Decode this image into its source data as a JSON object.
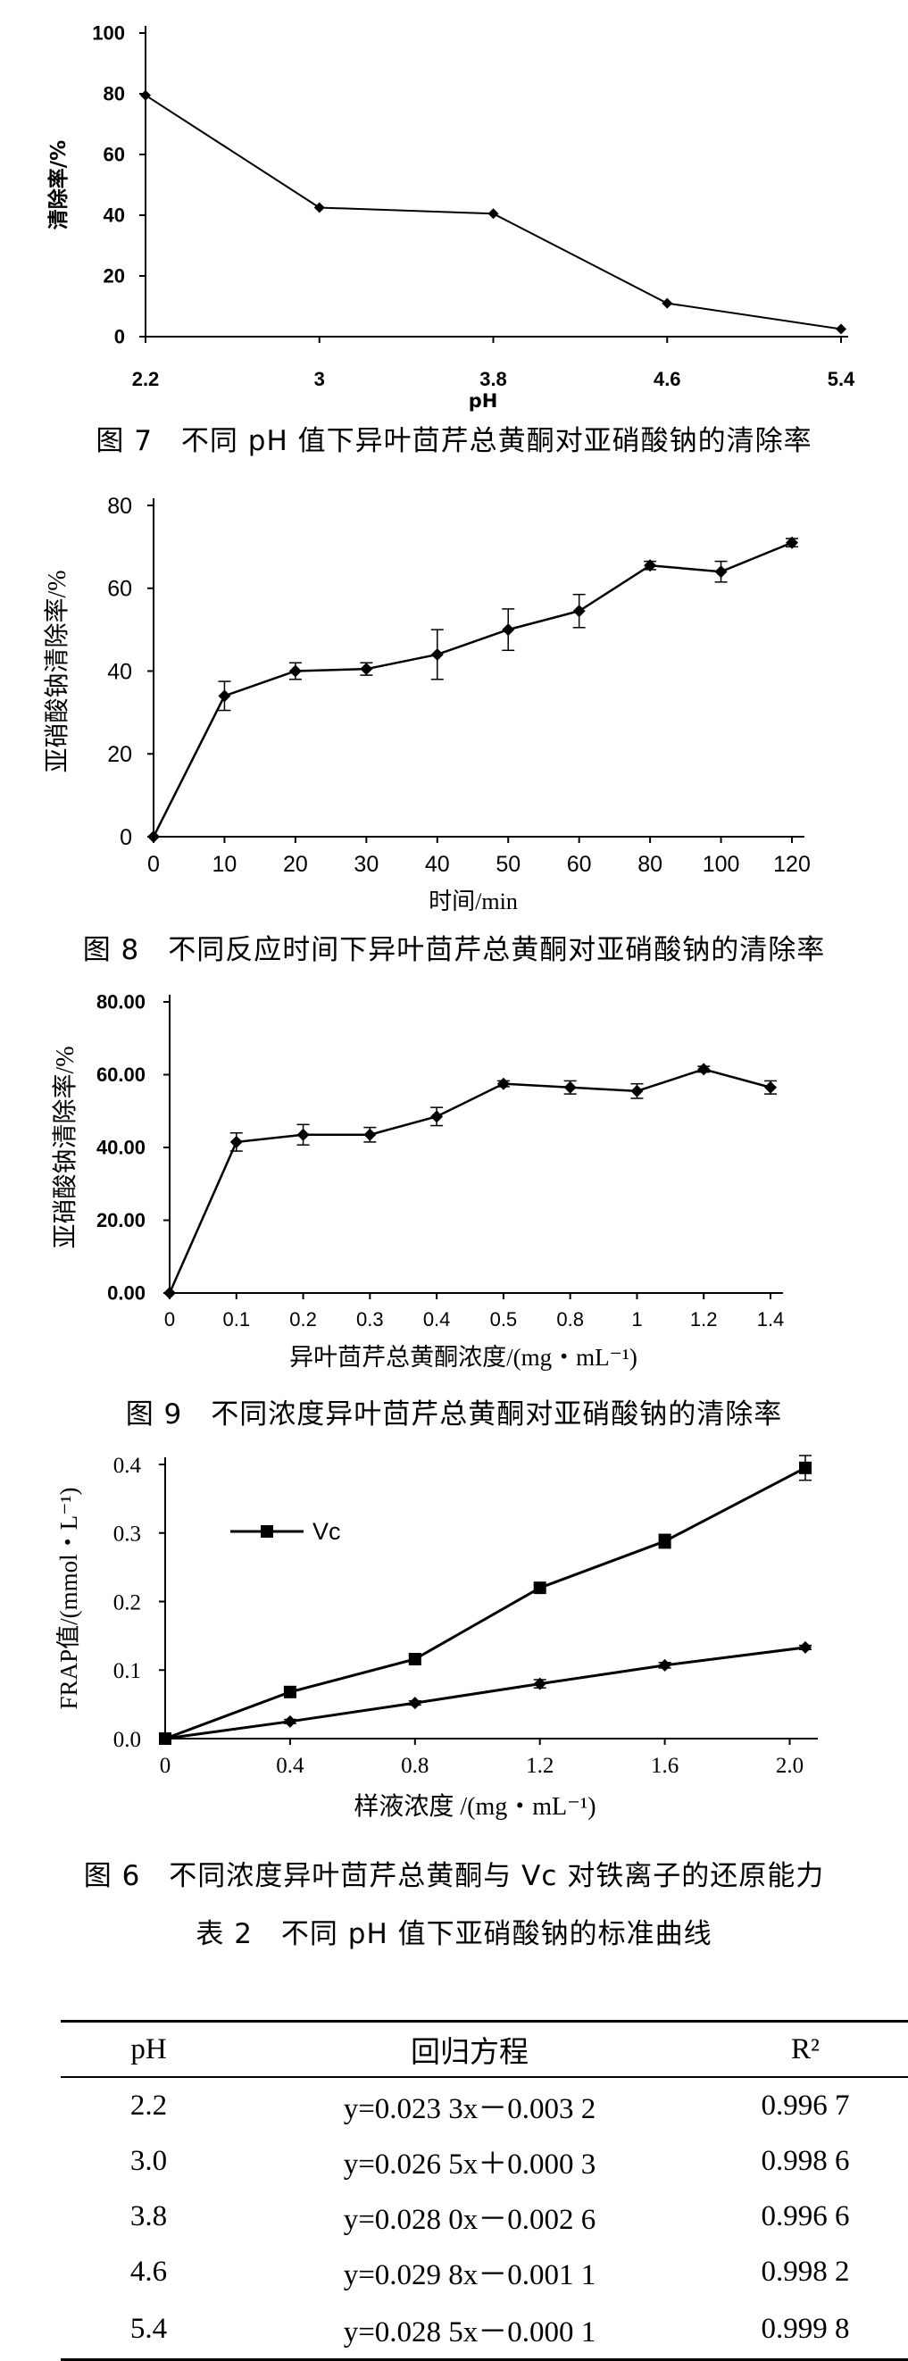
{
  "chart_data": [
    {
      "type": "line",
      "ylabel": "清除率/%",
      "xlabel": "pH",
      "categories": [
        "2.2",
        "3",
        "3.8",
        "4.6",
        "5.4"
      ],
      "series": [
        {
          "values": [
            79.5,
            42.5,
            40.5,
            11,
            2.5
          ]
        }
      ],
      "ylim": [
        0,
        100
      ],
      "yticks": [
        "0",
        "20",
        "40",
        "60",
        "80",
        "100"
      ],
      "grid": false
    },
    {
      "type": "line",
      "ylabel": "亚硝酸钠清除率/%",
      "xlabel": "时间/min",
      "categories": [
        "0",
        "10",
        "20",
        "30",
        "40",
        "50",
        "60",
        "80",
        "100",
        "120"
      ],
      "series": [
        {
          "values": [
            0,
            34,
            40,
            40.5,
            44,
            50,
            54.5,
            65.5,
            64,
            71
          ],
          "errors": [
            0,
            3.5,
            2,
            1.5,
            6,
            5,
            4,
            1,
            2.5,
            1
          ]
        }
      ],
      "ylim": [
        0,
        80
      ],
      "yticks": [
        "0",
        "20",
        "40",
        "60",
        "80"
      ],
      "grid": false
    },
    {
      "type": "line",
      "ylabel": "亚硝酸钠清除率/%",
      "xlabel": "异叶茴芹总黄酮浓度/(mg・mL⁻¹)",
      "categories": [
        "0",
        "0.1",
        "0.2",
        "0.3",
        "0.4",
        "0.5",
        "0.8",
        "1",
        "1.2",
        "1.4"
      ],
      "series": [
        {
          "values": [
            0,
            41.5,
            43.5,
            43.5,
            48.5,
            57.5,
            56.5,
            55.5,
            61.5,
            56.5
          ],
          "errors": [
            0,
            2.5,
            2.8,
            2,
            2.5,
            0.8,
            1.8,
            2,
            0.8,
            1.8
          ]
        }
      ],
      "ylim": [
        0,
        80
      ],
      "yticks": [
        "0.00",
        "20.00",
        "40.00",
        "60.00",
        "80.00"
      ],
      "grid": false
    },
    {
      "type": "line",
      "ylabel": "FRAP值/(mmol・L⁻¹)",
      "xlabel": "样液浓度 /(mg・mL⁻¹)",
      "x": [
        0,
        0.4,
        0.8,
        1.2,
        1.6,
        2.05
      ],
      "series": [
        {
          "name": "Vc",
          "marker": "square",
          "values": [
            0,
            0.068,
            0.116,
            0.22,
            0.288,
            0.395
          ],
          "errors": [
            0,
            0.004,
            0.005,
            0.004,
            0.01,
            0.018
          ]
        },
        {
          "marker": "diamond",
          "values": [
            0,
            0.025,
            0.052,
            0.08,
            0.107,
            0.133
          ],
          "errors": [
            0,
            0.003,
            0.003,
            0.006,
            0.004,
            0.003
          ]
        }
      ],
      "xlim": [
        0,
        2.05
      ],
      "ylim": [
        0,
        0.4
      ],
      "xticks": [
        "0",
        "0.4",
        "0.8",
        "1.2",
        "1.6",
        "2.0"
      ],
      "yticks": [
        "0.0",
        "0.1",
        "0.2",
        "0.3",
        "0.4"
      ],
      "grid": false
    },
    {
      "type": "table",
      "columns": [
        "pH",
        "回归方程",
        "R²"
      ],
      "rows": [
        [
          "2.2",
          "y=0.023 3x－0.003 2",
          "0.996 7"
        ],
        [
          "3.0",
          "y=0.026 5x＋0.000 3",
          "0.998 6"
        ],
        [
          "3.8",
          "y=0.028 0x－0.002 6",
          "0.996 6"
        ],
        [
          "4.6",
          "y=0.029 8x－0.001 1",
          "0.998 2"
        ],
        [
          "5.4",
          "y=0.028 5x－0.000 1",
          "0.999 8"
        ]
      ]
    }
  ],
  "captions": {
    "fig7": "图 7　不同 pH 值下异叶茴芹总黄酮对亚硝酸钠的清除率",
    "fig8": "图 8　不同反应时间下异叶茴芹总黄酮对亚硝酸钠的清除率",
    "fig9": "图 9　不同浓度异叶茴芹总黄酮对亚硝酸钠的清除率",
    "fig6": "图 6　不同浓度异叶茴芹总黄酮与 Vc 对铁离子的还原能力",
    "table2": "表 2　不同 pH 值下亚硝酸钠的标准曲线"
  }
}
